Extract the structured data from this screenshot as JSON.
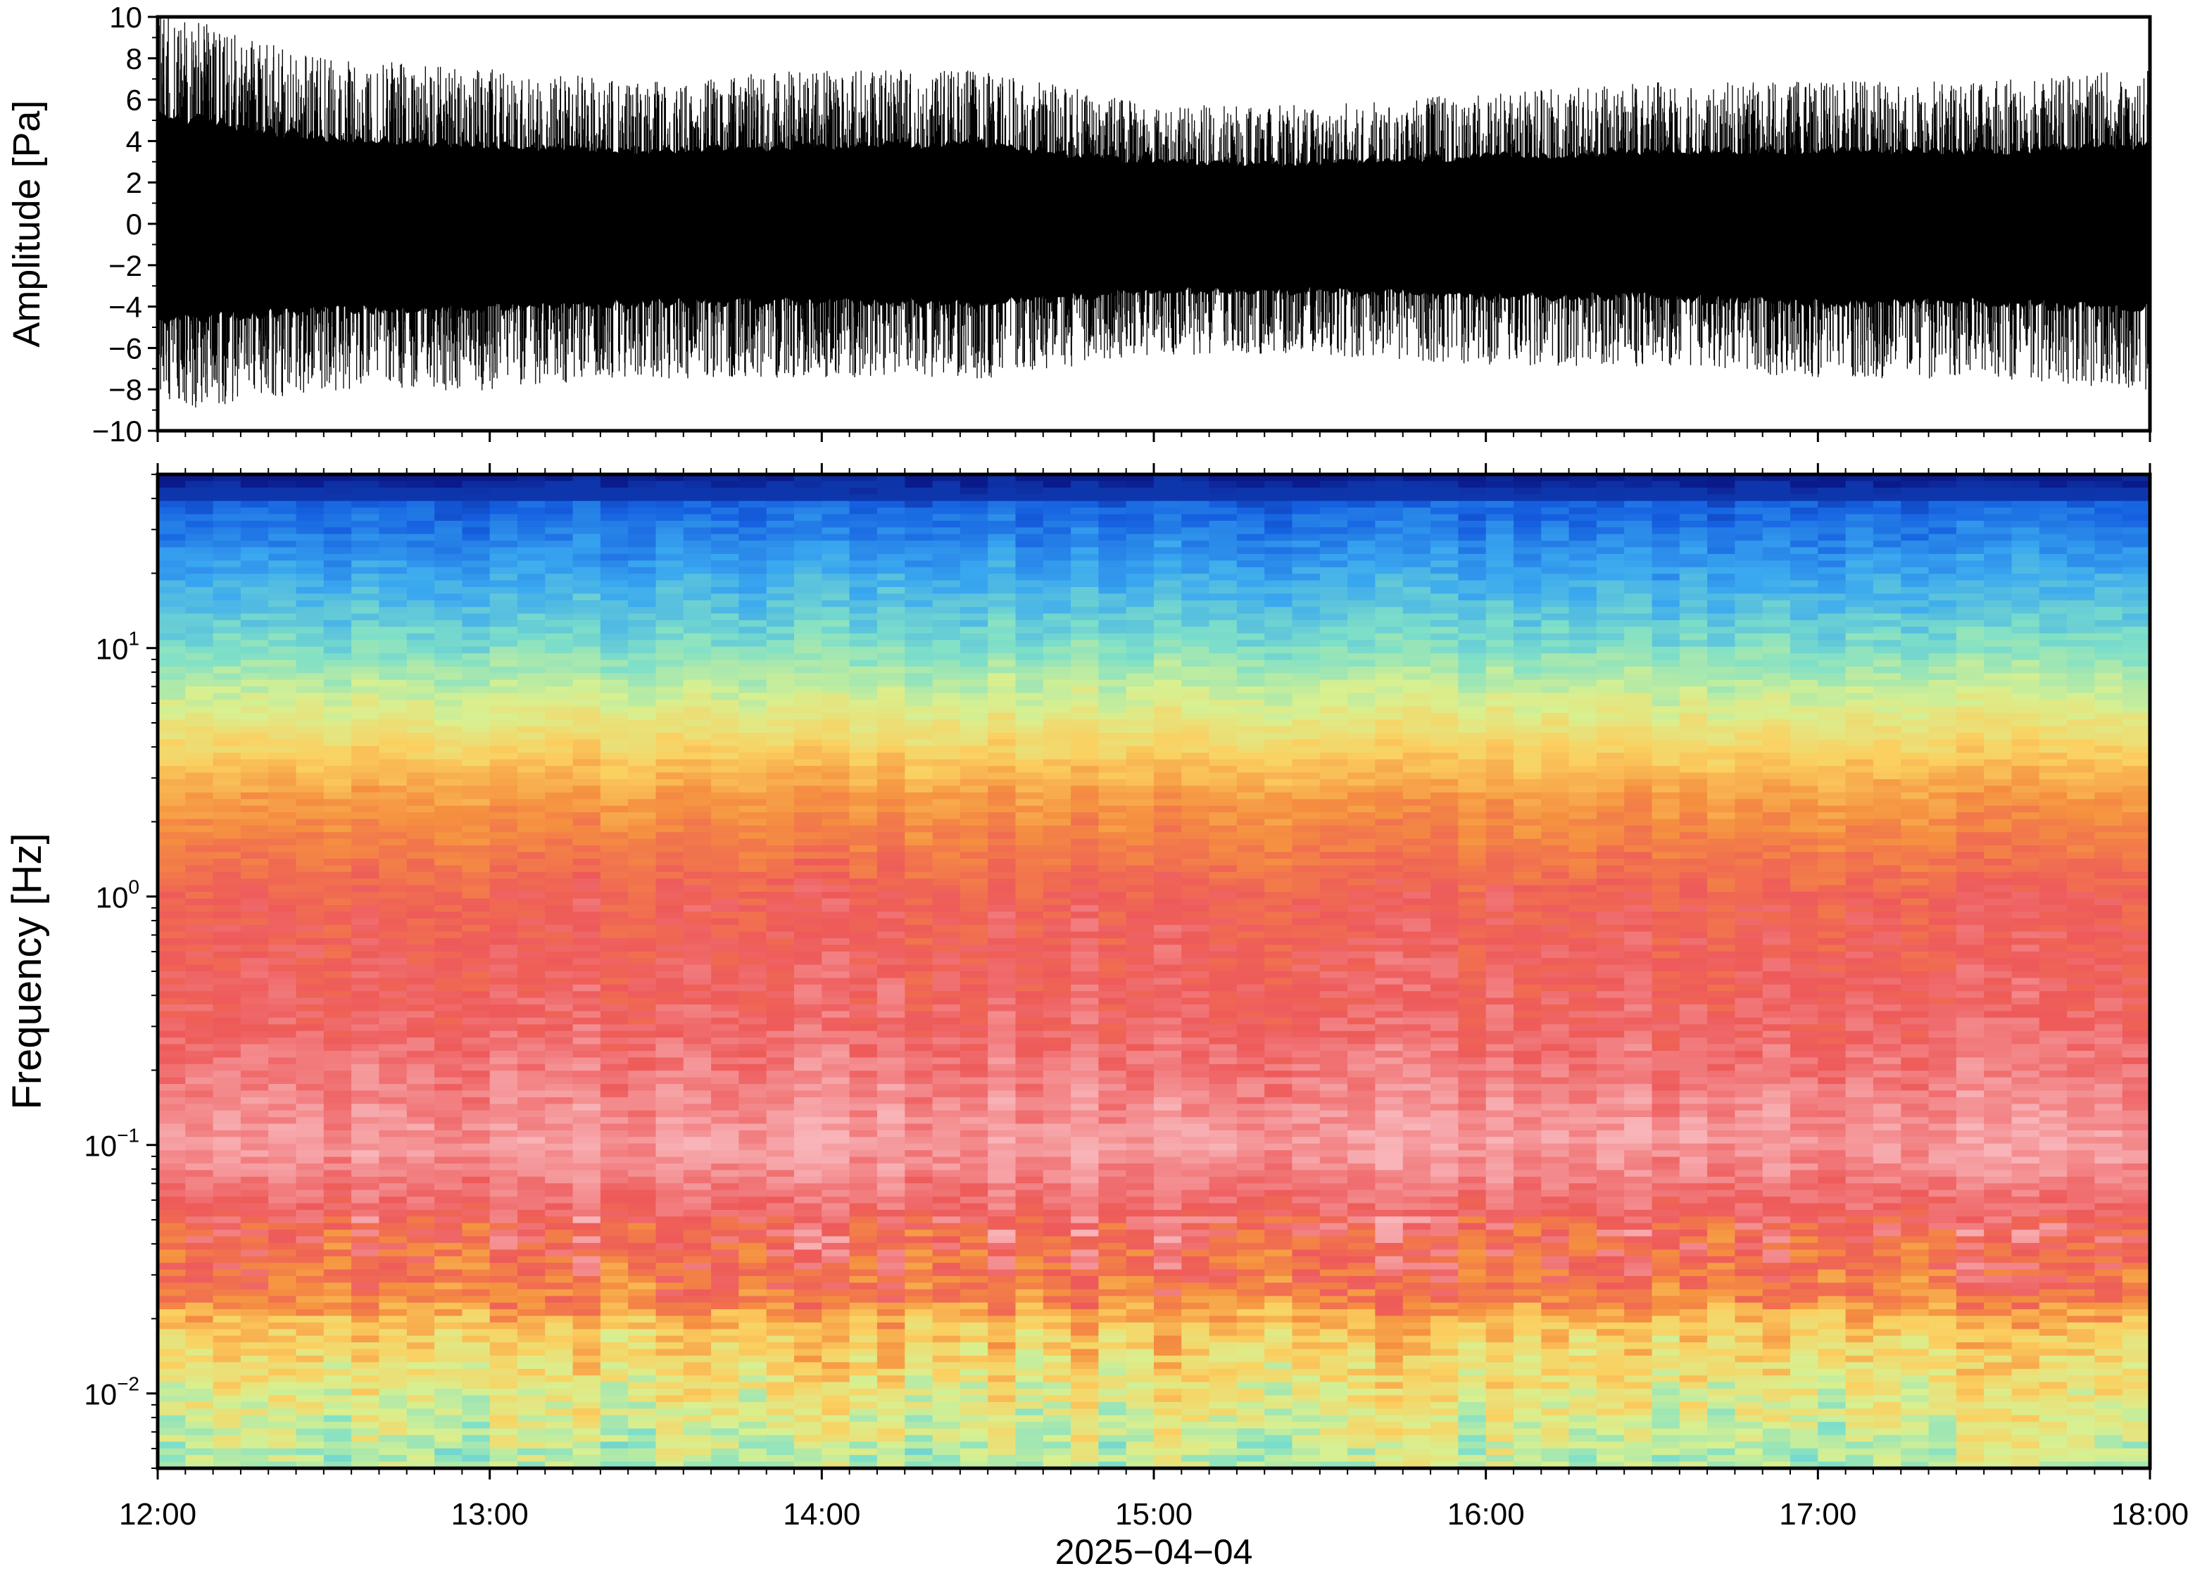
{
  "chart_data": [
    {
      "type": "line",
      "panel": "waveform",
      "ylabel": "Amplitude [Pa]",
      "ylim": [
        -10,
        10
      ],
      "yticks": [
        10,
        8,
        6,
        4,
        2,
        0,
        -2,
        -4,
        -6,
        -8,
        -10
      ],
      "ytick_labels": [
        "10",
        "8",
        "6",
        "4",
        "2",
        "0",
        "−2",
        "−4",
        "−6",
        "−8",
        "−10"
      ],
      "series": [
        {
          "color": "#000000",
          "x": [
            "12:00",
            "12:30",
            "13:00",
            "13:30",
            "14:00",
            "14:30",
            "15:00",
            "15:30",
            "16:00",
            "16:30",
            "17:00",
            "17:30",
            "18:00"
          ],
          "upper": [
            9.0,
            7.0,
            6.5,
            6.0,
            6.5,
            6.5,
            5.0,
            5.0,
            5.5,
            6.0,
            6.0,
            6.0,
            6.5
          ],
          "lower": [
            -8.0,
            -7.0,
            -7.0,
            -6.5,
            -6.5,
            -6.5,
            -5.5,
            -5.5,
            -6.0,
            -6.0,
            -6.5,
            -6.5,
            -7.0
          ]
        }
      ],
      "grid": false
    },
    {
      "type": "heatmap",
      "panel": "spectrogram",
      "ylabel": "Frequency [Hz]",
      "yscale": "log",
      "ylim": [
        0.005,
        50
      ],
      "yticks": [
        0.01,
        0.1,
        1,
        10
      ],
      "ytick_labels": [
        {
          "base": "10",
          "exp": "−2"
        },
        {
          "base": "10",
          "exp": "−1"
        },
        {
          "base": "10",
          "exp": "0"
        },
        {
          "base": "10",
          "exp": "1"
        }
      ],
      "xlabel": "2025−04−04",
      "xticks": [
        "12:00",
        "13:00",
        "14:00",
        "15:00",
        "16:00",
        "17:00",
        "18:00"
      ],
      "xlim": [
        "12:00",
        "18:00"
      ],
      "colormap": [
        "#0a1a8a",
        "#1560e0",
        "#3aa8f0",
        "#7fe0c8",
        "#d8f090",
        "#fbd060",
        "#f59040",
        "#ee5a5a",
        "#f8b4b8"
      ],
      "frequency_profile_hz": [
        40,
        20,
        10,
        5,
        2,
        1,
        0.3,
        0.1,
        0.03,
        0.015,
        0.008
      ],
      "level_profile": [
        "deep blue",
        "blue",
        "teal-green",
        "yellow",
        "orange",
        "red",
        "red",
        "pink",
        "red",
        "orange",
        "yellow-green"
      ],
      "grid": false
    }
  ]
}
